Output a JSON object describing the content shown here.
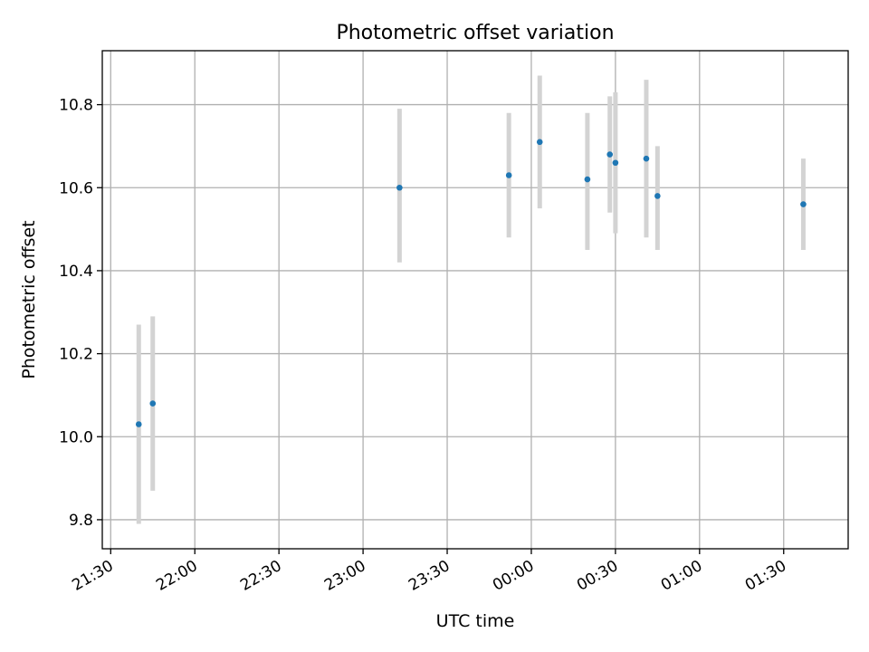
{
  "chart_data": {
    "type": "scatter",
    "title": "Photometric offset variation",
    "xlabel": "UTC time",
    "ylabel": "Photometric offset",
    "x_ticks": [
      "21:30",
      "22:00",
      "22:30",
      "23:00",
      "23:30",
      "00:00",
      "00:30",
      "01:00",
      "01:30"
    ],
    "y_ticks": [
      "9.8",
      "10.0",
      "10.2",
      "10.4",
      "10.6",
      "10.8"
    ],
    "xlim": [
      "21:27",
      "01:53"
    ],
    "ylim": [
      9.73,
      10.93
    ],
    "grid": true,
    "series": [
      {
        "points": [
          {
            "x": "21:40",
            "y": 10.03,
            "err_low": 9.79,
            "err_high": 10.27
          },
          {
            "x": "21:45",
            "y": 10.08,
            "err_low": 9.87,
            "err_high": 10.29
          },
          {
            "x": "23:13",
            "y": 10.6,
            "err_low": 10.42,
            "err_high": 10.79
          },
          {
            "x": "23:52",
            "y": 10.63,
            "err_low": 10.48,
            "err_high": 10.78
          },
          {
            "x": "00:03",
            "y": 10.71,
            "err_low": 10.55,
            "err_high": 10.87
          },
          {
            "x": "00:20",
            "y": 10.62,
            "err_low": 10.45,
            "err_high": 10.78
          },
          {
            "x": "00:28",
            "y": 10.68,
            "err_low": 10.54,
            "err_high": 10.82
          },
          {
            "x": "00:30",
            "y": 10.66,
            "err_low": 10.49,
            "err_high": 10.83
          },
          {
            "x": "00:41",
            "y": 10.67,
            "err_low": 10.48,
            "err_high": 10.86
          },
          {
            "x": "00:45",
            "y": 10.58,
            "err_low": 10.45,
            "err_high": 10.7
          },
          {
            "x": "01:37",
            "y": 10.56,
            "err_low": 10.45,
            "err_high": 10.67
          }
        ]
      }
    ],
    "colors": {
      "marker": "#1f77b4",
      "errorbar": "#d3d3d3",
      "grid": "#b0b0b0",
      "axes": "#000000"
    }
  }
}
